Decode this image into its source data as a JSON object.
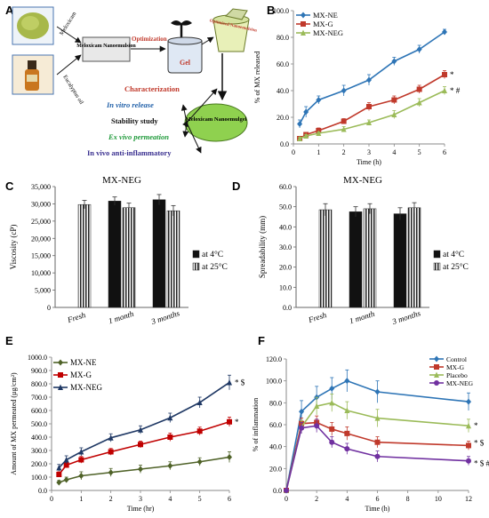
{
  "panels": {
    "A": {
      "label": "A",
      "left_plant_text": "Meloxicam",
      "left_oil_text": "Eucalyptus oil",
      "box_nanoemulsion": "Meloxicam Nanoemulsion",
      "optimization": "Optimization",
      "gel": "Gel",
      "jar_text": "Optimized Nanoemulsion",
      "nanoemulgel": "Meloxicam Nanoemulgel",
      "items": [
        {
          "text": "Characterization",
          "color": "#c0392b"
        },
        {
          "text": "In vitro release",
          "color": "#1f5fa8"
        },
        {
          "text": "Stability study",
          "color": "#111111"
        },
        {
          "text": "Ex vivo permeation",
          "color": "#1f9a3a"
        },
        {
          "text": "In vivo anti-inflammatory",
          "color": "#3a3090"
        }
      ]
    },
    "C": {
      "label": "C",
      "title": "MX-NEG"
    },
    "D": {
      "label": "D",
      "title": "MX-NEG"
    },
    "E": {
      "label": "E"
    },
    "F": {
      "label": "F"
    }
  },
  "chart_data": [
    {
      "id": "B",
      "type": "line",
      "xlabel": "Time (h)",
      "ylabel": "% of MX released",
      "xlim": [
        0,
        6
      ],
      "ylim": [
        0,
        100
      ],
      "xticks": [
        "0",
        "1",
        "2",
        "3",
        "4",
        "5",
        "6"
      ],
      "yticks": [
        "0.0",
        "20.0",
        "40.0",
        "60.0",
        "80.0",
        "100.0"
      ],
      "legend": "top-left",
      "series": [
        {
          "name": "MX-NE",
          "color": "#2e75b6",
          "marker": "diamond",
          "x": [
            0.25,
            0.5,
            1,
            2,
            3,
            4,
            5,
            6
          ],
          "y": [
            15,
            24,
            33,
            40,
            48,
            62,
            71,
            84
          ],
          "err": [
            3,
            4,
            3,
            4,
            4,
            3,
            3,
            2
          ],
          "annotation": ""
        },
        {
          "name": "MX-G",
          "color": "#c0392b",
          "marker": "square",
          "x": [
            0.25,
            0.5,
            1,
            2,
            3,
            4,
            5,
            6
          ],
          "y": [
            4,
            7,
            10,
            17,
            28,
            33,
            41,
            52
          ],
          "err": [
            1,
            1,
            2,
            2,
            3,
            3,
            3,
            3
          ],
          "annotation": "*"
        },
        {
          "name": "MX-NEG",
          "color": "#9bbb59",
          "marker": "triangle",
          "x": [
            0.25,
            0.5,
            1,
            2,
            3,
            4,
            5,
            6
          ],
          "y": [
            4,
            6,
            8,
            11,
            16,
            22,
            31,
            40
          ],
          "err": [
            1,
            1,
            1,
            2,
            2,
            3,
            3,
            3
          ],
          "annotation": "* #"
        }
      ]
    },
    {
      "id": "C",
      "type": "bar",
      "ylabel": "Viscosity (cP)",
      "categories": [
        "Fresh",
        "1 month",
        "3 months"
      ],
      "ylim": [
        0,
        35000
      ],
      "yticks": [
        "0",
        "5,000",
        "10,000",
        "15,000",
        "20,000",
        "25,000",
        "30,000",
        "35,000"
      ],
      "legend": "right",
      "series": [
        {
          "name": "at 4°C",
          "color": "#111111",
          "values": [
            null,
            30800,
            31200
          ],
          "err": [
            0,
            1200,
            1500
          ]
        },
        {
          "name": "at 25°C",
          "color": "hatch",
          "values": [
            29800,
            28900,
            28000
          ],
          "err": [
            1200,
            1300,
            1500
          ]
        }
      ]
    },
    {
      "id": "D",
      "type": "bar",
      "ylabel": "Spreadability (mm)",
      "categories": [
        "Fresh",
        "1 month",
        "3 months"
      ],
      "ylim": [
        0,
        60
      ],
      "yticks": [
        "0.0",
        "10.0",
        "20.0",
        "30.0",
        "40.0",
        "50.0",
        "60.0"
      ],
      "legend": "right",
      "series": [
        {
          "name": "at 4°C",
          "color": "#111111",
          "values": [
            null,
            47.5,
            46.5
          ],
          "err": [
            0,
            2.5,
            3
          ]
        },
        {
          "name": "at 25°C",
          "color": "hatch",
          "values": [
            48.5,
            49,
            49.5
          ],
          "err": [
            3,
            2.5,
            2.5
          ]
        }
      ]
    },
    {
      "id": "E",
      "type": "line",
      "xlabel": "Time (hr)",
      "ylabel": "Amount of MX permeated (µg/cm²)",
      "xlim": [
        0,
        6
      ],
      "ylim": [
        0,
        1000
      ],
      "xticks": [
        "0",
        "1",
        "2",
        "3",
        "4",
        "5",
        "6"
      ],
      "yticks": [
        "0.0",
        "100.0",
        "200.0",
        "300.0",
        "400.0",
        "500.0",
        "600.0",
        "700.0",
        "800.0",
        "900.0",
        "1000.0"
      ],
      "legend": "top-left",
      "series": [
        {
          "name": "MX-NE",
          "color": "#4f6228",
          "marker": "diamond",
          "x": [
            0.25,
            0.5,
            1,
            2,
            3,
            4,
            5,
            6
          ],
          "y": [
            60,
            80,
            110,
            135,
            160,
            185,
            215,
            250
          ],
          "err": [
            15,
            20,
            30,
            30,
            30,
            30,
            30,
            40
          ],
          "annotation": ""
        },
        {
          "name": "MX-G",
          "color": "#c00000",
          "marker": "square",
          "x": [
            0.25,
            0.5,
            1,
            2,
            3,
            4,
            5,
            6
          ],
          "y": [
            120,
            190,
            230,
            290,
            345,
            400,
            445,
            515
          ],
          "err": [
            20,
            20,
            25,
            25,
            25,
            30,
            30,
            35
          ],
          "annotation": "*"
        },
        {
          "name": "MX-NEG",
          "color": "#1f3864",
          "marker": "triangle",
          "x": [
            0.25,
            0.5,
            1,
            2,
            3,
            4,
            5,
            6
          ],
          "y": [
            170,
            230,
            290,
            395,
            455,
            545,
            660,
            810
          ],
          "err": [
            25,
            30,
            30,
            30,
            30,
            35,
            40,
            55
          ],
          "annotation": "* $"
        }
      ]
    },
    {
      "id": "F",
      "type": "line",
      "xlabel": "Time (h)",
      "ylabel": "% of inflammation",
      "xlim": [
        0,
        12
      ],
      "ylim": [
        0,
        120
      ],
      "xticks": [
        "0",
        "2",
        "4",
        "6",
        "8",
        "10",
        "12"
      ],
      "yticks": [
        "0.0",
        "20.0",
        "40.0",
        "60.0",
        "80.0",
        "100.0",
        "120.0"
      ],
      "legend": "top-right",
      "series": [
        {
          "name": "Control",
          "color": "#2e75b6",
          "marker": "diamond",
          "x": [
            0,
            1,
            2,
            3,
            4,
            6,
            12
          ],
          "y": [
            0,
            72,
            85,
            93,
            100,
            90,
            81
          ],
          "err": [
            0,
            10,
            10,
            10,
            10,
            10,
            8
          ],
          "annotation": ""
        },
        {
          "name": "MX-G",
          "color": "#c0392b",
          "marker": "square",
          "x": [
            0,
            1,
            2,
            3,
            4,
            6,
            12
          ],
          "y": [
            0,
            61,
            62,
            56,
            52,
            44,
            41
          ],
          "err": [
            0,
            5,
            6,
            6,
            6,
            5,
            4
          ],
          "annotation": "* $"
        },
        {
          "name": "Placebo",
          "color": "#9bbb59",
          "marker": "triangle",
          "x": [
            0,
            1,
            2,
            3,
            4,
            6,
            12
          ],
          "y": [
            0,
            58,
            77,
            80,
            73,
            66,
            59
          ],
          "err": [
            0,
            6,
            8,
            8,
            8,
            8,
            6
          ],
          "annotation": "*"
        },
        {
          "name": "MX-NEG",
          "color": "#7030a0",
          "marker": "circle",
          "x": [
            0,
            1,
            2,
            3,
            4,
            6,
            12
          ],
          "y": [
            0,
            57,
            59,
            44,
            38,
            31,
            27
          ],
          "err": [
            0,
            5,
            6,
            5,
            5,
            5,
            4
          ],
          "annotation": "* $ #"
        }
      ]
    }
  ]
}
